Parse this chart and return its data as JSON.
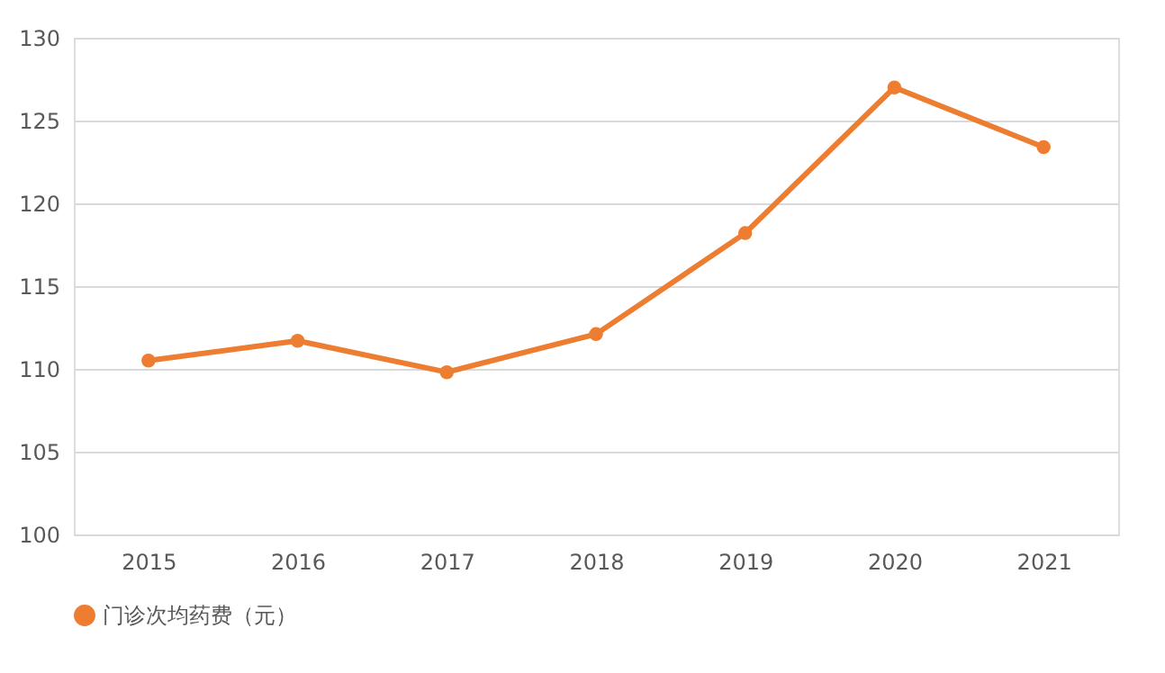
{
  "chart_data": {
    "type": "line",
    "categories": [
      "2015",
      "2016",
      "2017",
      "2018",
      "2019",
      "2020",
      "2021"
    ],
    "series": [
      {
        "name": "门诊次均药费（元）",
        "color": "#ed7d31",
        "values": [
          110.5,
          111.7,
          109.8,
          112.1,
          118.2,
          127.0,
          123.4
        ]
      }
    ],
    "ylim": [
      100,
      130
    ],
    "yticks": [
      100,
      105,
      110,
      115,
      120,
      125,
      130
    ],
    "grid": "y",
    "legend": "bottom",
    "marker": "circle",
    "line_style": "solid"
  }
}
